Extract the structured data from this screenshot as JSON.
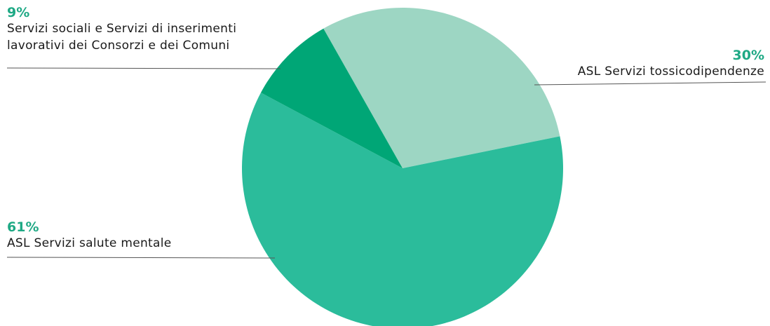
{
  "chart_data": {
    "type": "pie",
    "slices": [
      {
        "label": "ASL Servizi tossicodipendenze",
        "value": 30,
        "value_label": "30%",
        "color": "#9dd6c3"
      },
      {
        "label": "ASL Servizi salute mentale",
        "value": 61,
        "value_label": "61%",
        "color": "#2bbc9b"
      },
      {
        "label": "Servizi sociali e Servizi di inserimenti lavorativi dei Consorzi e dei Comuni",
        "value": 9,
        "value_label": "9%",
        "color": "#00a676"
      }
    ],
    "label_color": "#1fa985",
    "leader_line_color": "#555555"
  }
}
